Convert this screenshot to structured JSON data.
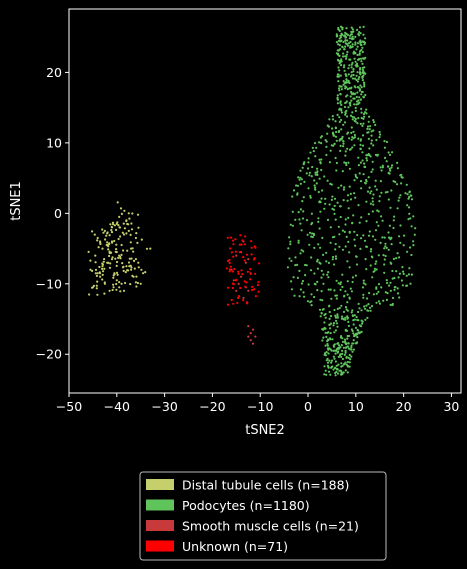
{
  "chart_data": {
    "type": "scatter",
    "xlabel": "tSNE2",
    "ylabel": "tSNE1",
    "xlim": [
      -50,
      32
    ],
    "ylim": [
      -25.5,
      29
    ],
    "x_ticks": [
      -50,
      -40,
      -30,
      -20,
      -10,
      0,
      10,
      20,
      30
    ],
    "y_ticks": [
      -20,
      -10,
      0,
      10,
      20
    ],
    "grid": false,
    "legend_position": "below",
    "background": "#000000",
    "axis_color": "#ffffff",
    "series": [
      {
        "name": "Distal tubule cells (n=188)",
        "color": "#c5cf6c",
        "n": 188,
        "points": [
          [
            -45.5,
            -8
          ],
          [
            -45,
            -10.5
          ],
          [
            -44.5,
            -6
          ],
          [
            -44,
            -3.5
          ],
          [
            -43.5,
            -9
          ],
          [
            -43,
            -5
          ],
          [
            -42.5,
            -2.5
          ],
          [
            -42,
            -7
          ],
          [
            -41.5,
            -11
          ],
          [
            -41,
            -4
          ],
          [
            -40.5,
            -8.5
          ],
          [
            -40,
            -1.5
          ],
          [
            -39.5,
            -6
          ],
          [
            -39,
            -10
          ],
          [
            -38.5,
            -3
          ],
          [
            -38,
            -7.5
          ],
          [
            -37.5,
            0
          ],
          [
            -37,
            -5
          ],
          [
            -36.5,
            -9
          ],
          [
            -36,
            -3.5
          ],
          [
            -41,
            -6.5
          ],
          [
            -40,
            -9.5
          ],
          [
            -39,
            -4.5
          ],
          [
            -38,
            -1
          ],
          [
            -37,
            -8
          ],
          [
            -43,
            -7.5
          ],
          [
            -42,
            -4.5
          ],
          [
            -44,
            -8.5
          ],
          [
            -35,
            -10
          ],
          [
            -33,
            -5
          ],
          [
            -35.5,
            -7
          ],
          [
            -34.5,
            -8.5
          ],
          [
            -42.5,
            -10
          ],
          [
            -41,
            -2
          ],
          [
            -39.5,
            -0.5
          ],
          [
            -38.5,
            -11
          ],
          [
            -40,
            -5.5
          ],
          [
            -36,
            -6.5
          ],
          [
            -43.5,
            -4
          ],
          [
            -37.5,
            -2.5
          ]
        ]
      },
      {
        "name": "Podocytes (n=1180)",
        "color": "#5fc45c",
        "n": 1180,
        "extent": {
          "x": [
            -8,
            28
          ],
          "y": [
            -23,
            26.5
          ]
        }
      },
      {
        "name": "Smooth muscle cells (n=21)",
        "color": "#c8393b",
        "n": 21,
        "points": [
          [
            -12.5,
            -16
          ],
          [
            -12,
            -17
          ],
          [
            -11.5,
            -16.5
          ],
          [
            -12,
            -18
          ],
          [
            -11,
            -17.5
          ],
          [
            -12.5,
            -17.5
          ],
          [
            -11.5,
            -18.5
          ],
          [
            -14,
            -9
          ],
          [
            -13,
            -7
          ],
          [
            -15,
            -6
          ],
          [
            -12.5,
            -11
          ],
          [
            -14.5,
            -10
          ],
          [
            -13.5,
            -4
          ],
          [
            -16,
            -8
          ],
          [
            -12,
            -8.5
          ],
          [
            -13,
            -10.5
          ],
          [
            -15.5,
            -9.5
          ],
          [
            -14,
            -5.5
          ],
          [
            -12.5,
            -6.5
          ],
          [
            -15,
            -11
          ],
          [
            -13.5,
            -12
          ]
        ]
      },
      {
        "name": "Unknown (n=71)",
        "color": "#ff0000",
        "n": 71,
        "extent": {
          "x": [
            -17,
            -10
          ],
          "y": [
            -13,
            -2.5
          ]
        }
      }
    ]
  }
}
